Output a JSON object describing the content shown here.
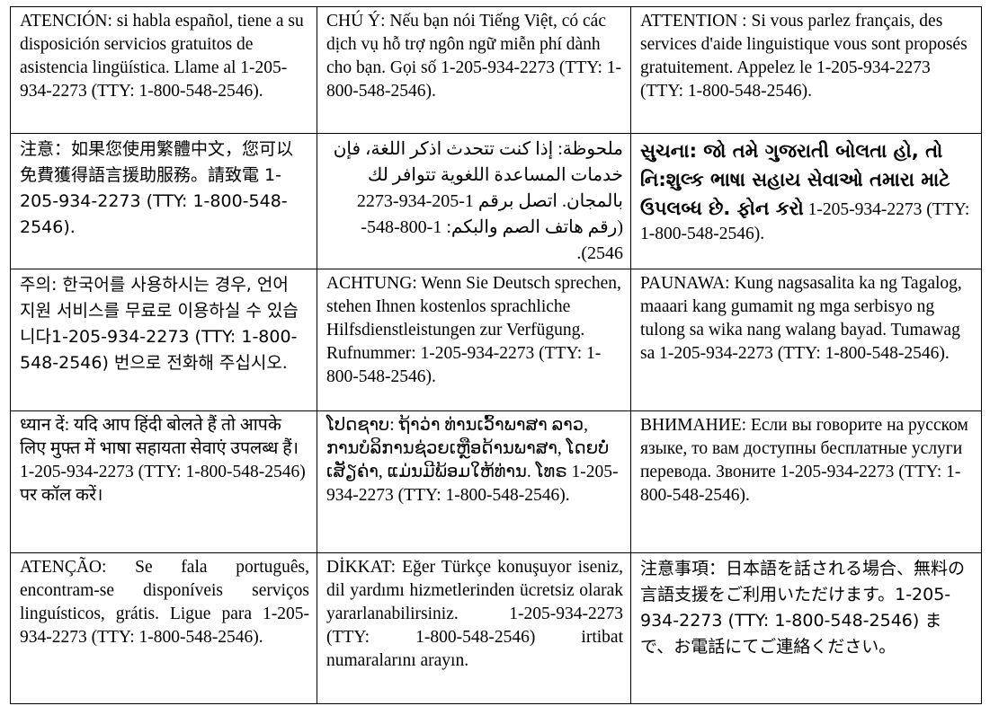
{
  "notices": [
    [
      {
        "lang": "es",
        "text": "ATENCIÓN: si habla español, tiene a su disposición servicios gratuitos de asistencia lingüística. Llame al 1-205-934-2273 (TTY: 1-800-548-2546)."
      },
      {
        "lang": "vi",
        "text": "CHÚ Ý:  Nếu bạn nói Tiếng Việt, có các dịch vụ hỗ trợ ngôn ngữ miễn phí dành cho bạn.  Gọi số 1-205-934-2273 (TTY: 1-800-548-2546)."
      },
      {
        "lang": "fr",
        "text": "ATTENTION :  Si vous parlez français, des services d'aide linguistique vous sont proposés gratuitement.  Appelez le 1-205-934-2273 (TTY: 1-800-548-2546)."
      }
    ],
    [
      {
        "lang": "zh",
        "text": "注意：如果您使用繁體中文，您可以免費獲得語言援助服務。請致電 1-205-934-2273 (TTY: 1-800-548-2546)."
      },
      {
        "lang": "ar",
        "text": "ملحوظة:  إذا كنت تتحدث اذكر اللغة، فإن خدمات المساعدة اللغوية تتوافر لك بالمجان.  اتصل برقم 1-205-934-2273 (رقم هاتف الصم والبكم: 1-800-548-2546)."
      },
      {
        "lang": "gu",
        "text": "સુચના: જો તમે ગુજરાતી બોલતા હો, તો નિ:શુલ્ક ભાષા સહાય સેવાઓ તમારા માટે ઉપલબ્ધ છે. ફોન કરો",
        "phone": "1-205-934-2273 (TTY: 1-800-548-2546)."
      }
    ],
    [
      {
        "lang": "ko",
        "text": "주의:  한국어를 사용하시는 경우, 언어 지원 서비스를 무료로 이용하실 수 있습니다1-205-934-2273 (TTY: 1-800-548-2546) 번으로 전화해 주십시오."
      },
      {
        "lang": "de",
        "text": "ACHTUNG:  Wenn Sie Deutsch sprechen, stehen Ihnen kostenlos sprachliche Hilfsdienstleistungen zur Verfügung.  Rufnummer: 1-205-934-2273 (TTY: 1-800-548-2546)."
      },
      {
        "lang": "tl",
        "text": "PAUNAWA:  Kung nagsasalita ka ng Tagalog, maaari kang gumamit ng mga serbisyo ng tulong sa wika nang walang bayad.  Tumawag sa 1-205-934-2273 (TTY: 1-800-548-2546)."
      }
    ],
    [
      {
        "lang": "hi",
        "text": "ध्यान दें:  यदि आप हिंदी बोलते हैं तो आपके लिए मुफ्त में भाषा सहायता सेवाएं उपलब्ध हैं। 1-205-934-2273 (TTY: 1-800-548-2546) पर कॉल करें।"
      },
      {
        "lang": "lo",
        "text": "ໂປດຊາບ: ຖ້າວ່າ ທ່ານເວົ້າພາສາ ລາວ, ການບໍລິການຊ່ວຍເຫຼືອດ້ານພາສາ, ໂດຍບໍ່ເສັຽຄ່າ, ແມ່ນມີພ້ອມໃຫ້ທ່ານ. ໂທຣ 1-205-934-2273 (TTY: 1-800-548-2546)."
      },
      {
        "lang": "ru",
        "text": "ВНИМАНИЕ:  Если вы говорите на русском языке, то вам доступны бесплатные услуги перевода.  Звоните 1-205-934-2273 (TTY: 1-800-548-2546)."
      }
    ],
    [
      {
        "lang": "pt",
        "text": "ATENÇÃO:  Se fala português, encontram-se disponíveis serviços linguísticos, grátis.  Ligue para 1-205-934-2273 (TTY: 1-800-548-2546)."
      },
      {
        "lang": "tr",
        "text": "DİKKAT:  Eğer Türkçe konuşuyor iseniz, dil yardımı hizmetlerinden ücretsiz olarak yararlanabilirsiniz. 1-205-934-2273 (TTY: 1-800-548-2546) irtibat numaralarını arayın."
      },
      {
        "lang": "ja",
        "text": "注意事項：日本語を話される場合、無料の言語支援をご利用いただけます。1-205-934-2273 (TTY: 1-800-548-2546) まで、お電話にてご連絡ください。"
      }
    ]
  ]
}
